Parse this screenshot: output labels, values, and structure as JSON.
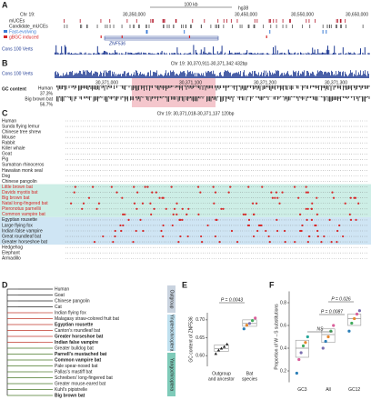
{
  "panel_letters": [
    "A",
    "B",
    "C",
    "D",
    "E",
    "F"
  ],
  "panel_a": {
    "scale": "100 kb",
    "assembly": "hg38",
    "chrom": "Chr 19:",
    "positions": [
      "30,350,000",
      "30,450,000",
      "30,550,000",
      "30,650,000"
    ],
    "tracks": [
      "mUCEs",
      "Candidate_mUCEs",
      "Fast-evolving",
      "gBGC induced",
      "Cons 100 Verts"
    ],
    "gene": "ZNF536"
  },
  "panel_b": {
    "region": "Chr 19: 30,370,911-30,371,342  432bp",
    "track": "Cons 100 Verts",
    "positions": [
      "30,371,000",
      "30,371,100",
      "30,371,200",
      "30,371,300"
    ],
    "gc_label": "GC content",
    "rows": [
      {
        "name": "Human",
        "gc": "37.3%"
      },
      {
        "name": "Big brown bat",
        "gc": "56.7%"
      }
    ]
  },
  "panel_c": {
    "region": "Chr 19: 30,371,018-30,371,137  120bp",
    "species": [
      "Human",
      "Sunda flying lemur",
      "Chinese tree shrew",
      "Mouse",
      "Rabbit",
      "Killer whale",
      "Goat",
      "Pig",
      "Sumatran rhinoceros",
      "Hawaiian monk seal",
      "Dog",
      "Chinese pangolin",
      "Little brown bat",
      "Davids myotis bat",
      "Big brown bat",
      "Natal long-fingered bat",
      "Pteronotus parnellii",
      "Common vampire bat",
      "Egyptian rousette",
      "Large flying fox",
      "Indian false vampire",
      "Great roundleaf bat",
      "Greater horseshoe bat",
      "Hedgehog",
      "Elephant",
      "Armadillo"
    ]
  },
  "panel_d": {
    "groups": [
      "Outgroup",
      "Yinpterochiroptera",
      "Yangochiroptera"
    ],
    "species": [
      {
        "name": "Human",
        "bold": false
      },
      {
        "name": "Goat",
        "bold": false
      },
      {
        "name": "Chinese pangolin",
        "bold": false
      },
      {
        "name": "Cat",
        "bold": false
      },
      {
        "name": "Indian flying fox",
        "bold": false
      },
      {
        "name": "Malagasy straw-colored fruit bat",
        "bold": false
      },
      {
        "name": "Egyptian rousette",
        "bold": true
      },
      {
        "name": "Canton's roundleaf bat",
        "bold": false
      },
      {
        "name": "Greater horseshoe bat",
        "bold": true
      },
      {
        "name": "Indian false vampire",
        "bold": true
      },
      {
        "name": "Greater bulldog bat",
        "bold": false
      },
      {
        "name": "Parnell's mustached bat",
        "bold": true
      },
      {
        "name": "Common vampire bat",
        "bold": true
      },
      {
        "name": "Pale spear-nosed bat",
        "bold": false
      },
      {
        "name": "Pallas's mastiff bat",
        "bold": false
      },
      {
        "name": "Schreibers' long-fingered bat",
        "bold": false
      },
      {
        "name": "Greater mouse-eared bat",
        "bold": false
      },
      {
        "name": "Kuhl's pipistrelle",
        "bold": false
      },
      {
        "name": "Big brown bat",
        "bold": true
      }
    ]
  },
  "chart_data": [
    {
      "type": "box",
      "ylabel": "GC content of ZNF536",
      "ylim": [
        0.57,
        0.72
      ],
      "yticks": [
        {
          "value": 0.6,
          "label": "0.60"
        },
        {
          "value": 0.65,
          "label": "0.65"
        },
        {
          "value": 0.7,
          "label": "0.70"
        }
      ],
      "annotations": [
        "P = 0.0043"
      ],
      "groups": [
        {
          "category": [
            "Outgroup",
            "and ancestor"
          ],
          "q1": 0.612,
          "median": 0.62,
          "q3": 0.63,
          "values": [
            0.605,
            0.615,
            0.62,
            0.625,
            0.632
          ],
          "colors": [
            "#222",
            "#222",
            "#222",
            "#222",
            "#222"
          ]
        },
        {
          "category": [
            "Bat",
            "species"
          ],
          "q1": 0.682,
          "median": 0.69,
          "q3": 0.7,
          "values": [
            0.675,
            0.685,
            0.69,
            0.698,
            0.705
          ],
          "colors": [
            "#2c7fb8",
            "#e6882e",
            "#7b6fb0",
            "#41ab5d",
            "#d95f9a"
          ]
        }
      ]
    },
    {
      "type": "box",
      "ylabel": "Proportion of W→S substitutions",
      "ylim": [
        0.1,
        0.9
      ],
      "yticks": [
        0.2,
        0.4,
        0.6,
        0.8
      ],
      "annotations": [
        "NS",
        "P = 0.0087",
        "P = 0.026"
      ],
      "groups": [
        {
          "category": [
            "GC3"
          ],
          "q1": 0.32,
          "median": 0.4,
          "q3": 0.47,
          "values": [
            0.18,
            0.3,
            0.36,
            0.42,
            0.45,
            0.5
          ],
          "colors": [
            "#2c7fb8",
            "#d95f9a",
            "#7b6fb0",
            "#41ab5d",
            "#e6882e",
            "#26a69a"
          ]
        },
        {
          "category": [
            "All"
          ],
          "q1": 0.45,
          "median": 0.52,
          "q3": 0.57,
          "values": [
            0.4,
            0.46,
            0.5,
            0.55,
            0.6
          ],
          "colors": [
            "#7b6fb0",
            "#2c7fb8",
            "#e6882e",
            "#41ab5d",
            "#d95f9a"
          ]
        },
        {
          "category": [
            "GC12"
          ],
          "q1": 0.6,
          "median": 0.66,
          "q3": 0.7,
          "values": [
            0.55,
            0.62,
            0.66,
            0.7,
            0.73
          ],
          "colors": [
            "#2c7fb8",
            "#41ab5d",
            "#e6882e",
            "#d95f9a",
            "#7b6fb0"
          ]
        }
      ]
    }
  ]
}
